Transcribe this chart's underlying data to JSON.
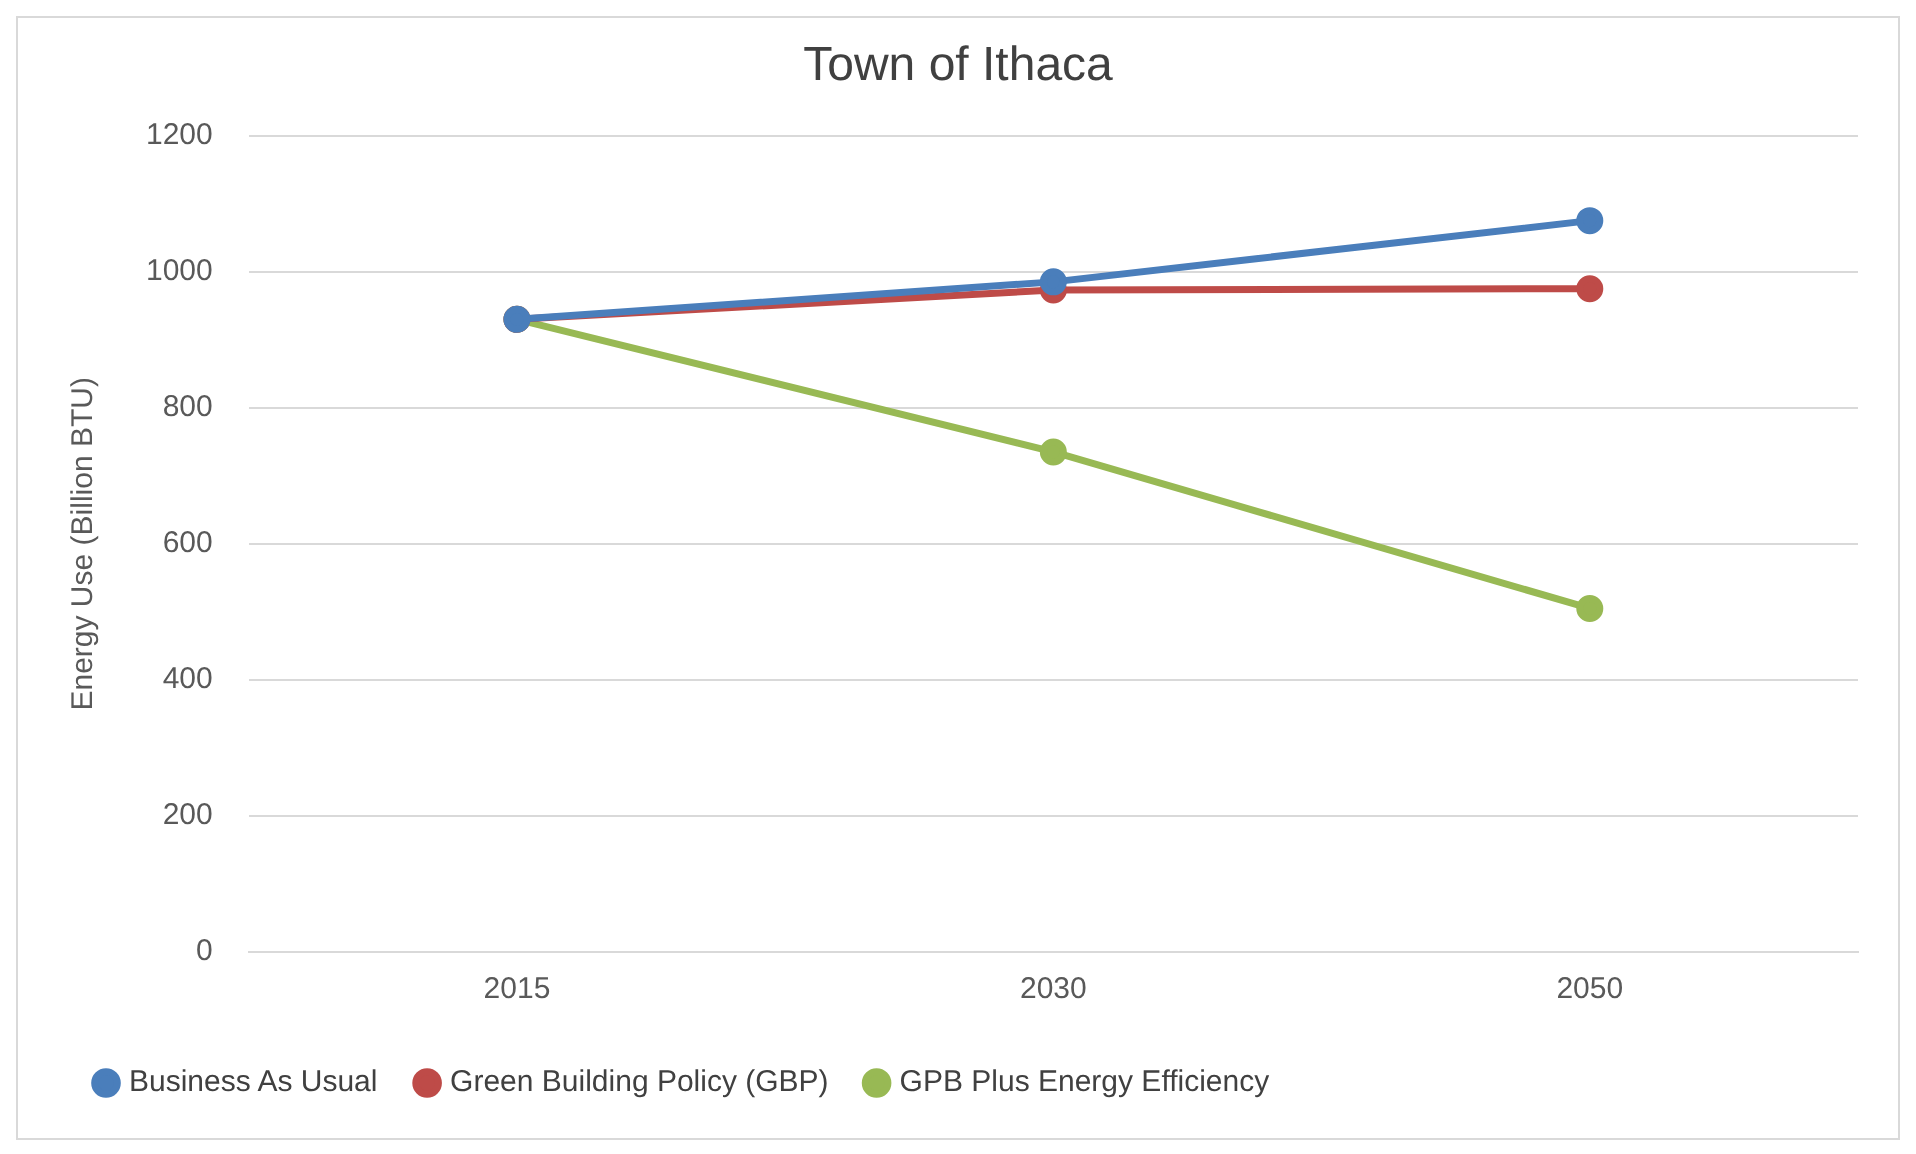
{
  "chart_data": {
    "type": "line",
    "title": "Town of Ithaca",
    "ylabel": "Energy Use (Billion BTU)",
    "categories": [
      "2015",
      "2030",
      "2050"
    ],
    "series": [
      {
        "name": "Business As Usual",
        "color": "#4a7ebb",
        "values": [
          930,
          985,
          1075
        ]
      },
      {
        "name": "Green Building Policy (GBP)",
        "color": "#be4b48",
        "values": [
          930,
          973,
          975
        ]
      },
      {
        "name": "GPB Plus Energy Efficiency",
        "color": "#98b954",
        "values": [
          930,
          735,
          505
        ]
      }
    ],
    "ylim": [
      0,
      1200
    ],
    "yticks": [
      0,
      200,
      400,
      600,
      800,
      1000,
      1200
    ],
    "grid": "y",
    "legend": "bottom",
    "marker": "circle"
  }
}
